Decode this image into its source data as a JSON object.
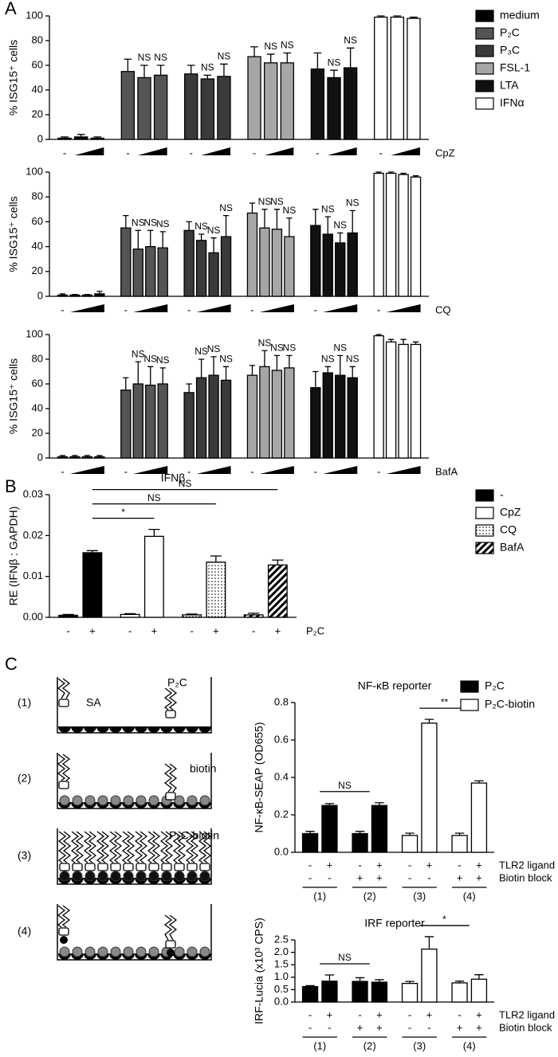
{
  "panel_labels": [
    "A",
    "B",
    "C"
  ],
  "diagram": {
    "rows": [
      "(1)",
      "(2)",
      "(3)",
      "(4)"
    ],
    "labels": [
      "P₂C",
      "SA",
      "biotin",
      "P₂C-biotin"
    ]
  },
  "chart_data": [
    {
      "type": "bar",
      "ylabel": "% ISG15⁺ cells",
      "ylim": [
        0,
        100
      ],
      "yticks": [
        0,
        20,
        40,
        60,
        80,
        100
      ],
      "treatment": "CpZ",
      "dose_labels": [
        "-",
        null,
        null
      ],
      "legend": "right",
      "series": [
        {
          "name": "medium",
          "color": "#000000",
          "values": [
            1,
            2,
            1
          ],
          "errors": [
            1,
            2,
            1
          ],
          "annotations": [
            null,
            null,
            null
          ]
        },
        {
          "name": "P₂C",
          "color": "#555555",
          "values": [
            55,
            50,
            52
          ],
          "errors": [
            10,
            10,
            8
          ],
          "annotations": [
            null,
            "NS",
            "NS"
          ]
        },
        {
          "name": "P₃C",
          "color": "#3a3a3a",
          "values": [
            53,
            49,
            51
          ],
          "errors": [
            7,
            3,
            10
          ],
          "annotations": [
            null,
            "NS",
            "NS"
          ]
        },
        {
          "name": "FSL-1",
          "color": "#a6a6a6",
          "values": [
            67,
            62,
            62
          ],
          "errors": [
            8,
            7,
            8
          ],
          "annotations": [
            null,
            "NS",
            "NS"
          ]
        },
        {
          "name": "LTA",
          "color": "#111111",
          "values": [
            57,
            50,
            58
          ],
          "errors": [
            13,
            6,
            16
          ],
          "annotations": [
            null,
            "NS",
            "NS"
          ]
        },
        {
          "name": "IFNα",
          "color": "#ffffff",
          "values": [
            99,
            99,
            98
          ],
          "errors": [
            1,
            1,
            1
          ],
          "annotations": [
            null,
            null,
            null
          ]
        }
      ]
    },
    {
      "type": "bar",
      "ylabel": "% ISG15⁺ cells",
      "ylim": [
        0,
        100
      ],
      "yticks": [
        0,
        20,
        40,
        60,
        80,
        100
      ],
      "treatment": "CQ",
      "dose_labels": [
        "-",
        null,
        null,
        null
      ],
      "series": [
        {
          "color": "#000000",
          "values": [
            1,
            1,
            1,
            2
          ],
          "errors": [
            1,
            0.5,
            0.5,
            2
          ],
          "annotations": [
            null,
            null,
            null,
            null
          ]
        },
        {
          "color": "#555555",
          "values": [
            55,
            38,
            40,
            39
          ],
          "errors": [
            10,
            15,
            13,
            13
          ],
          "annotations": [
            null,
            "NS",
            "NS",
            "NS"
          ]
        },
        {
          "color": "#3a3a3a",
          "values": [
            53,
            45,
            35,
            48
          ],
          "errors": [
            7,
            5,
            12,
            17
          ],
          "annotations": [
            null,
            "NS",
            "NS",
            "NS"
          ]
        },
        {
          "color": "#a6a6a6",
          "values": [
            67,
            55,
            54,
            48
          ],
          "errors": [
            8,
            15,
            16,
            15
          ],
          "annotations": [
            null,
            "NS",
            "NS",
            "NS"
          ]
        },
        {
          "color": "#111111",
          "values": [
            57,
            50,
            43,
            51
          ],
          "errors": [
            13,
            14,
            8,
            18
          ],
          "annotations": [
            null,
            "NS",
            "NS",
            "NS"
          ]
        },
        {
          "color": "#ffffff",
          "values": [
            99,
            99,
            98,
            96
          ],
          "errors": [
            1,
            1,
            1,
            1
          ],
          "annotations": [
            null,
            null,
            null,
            null
          ]
        }
      ]
    },
    {
      "type": "bar",
      "ylabel": "% ISG15⁺ cells",
      "ylim": [
        0,
        100
      ],
      "yticks": [
        0,
        20,
        40,
        60,
        80,
        100
      ],
      "treatment": "BafA",
      "dose_labels": [
        "-",
        null,
        null,
        null
      ],
      "series": [
        {
          "color": "#000000",
          "values": [
            1,
            1,
            1,
            1
          ],
          "errors": [
            1,
            1,
            1,
            1
          ],
          "annotations": [
            null,
            null,
            null,
            null
          ]
        },
        {
          "color": "#555555",
          "values": [
            55,
            60,
            59,
            60
          ],
          "errors": [
            10,
            18,
            15,
            13
          ],
          "annotations": [
            null,
            "NS",
            "NS",
            "NS"
          ]
        },
        {
          "color": "#3a3a3a",
          "values": [
            53,
            65,
            67,
            63
          ],
          "errors": [
            7,
            15,
            15,
            11
          ],
          "annotations": [
            null,
            "NS",
            "NS",
            "NS"
          ]
        },
        {
          "color": "#a6a6a6",
          "values": [
            67,
            74,
            71,
            73
          ],
          "errors": [
            8,
            13,
            12,
            10
          ],
          "annotations": [
            null,
            "NS",
            "NS",
            "NS"
          ]
        },
        {
          "color": "#111111",
          "values": [
            57,
            69,
            67,
            65
          ],
          "errors": [
            13,
            5,
            16,
            9
          ],
          "annotations": [
            null,
            "NS",
            "NS",
            "NS"
          ]
        },
        {
          "color": "#ffffff",
          "values": [
            99,
            94,
            92,
            92
          ],
          "errors": [
            1,
            2,
            4,
            2
          ],
          "annotations": [
            null,
            null,
            null,
            null
          ]
        }
      ]
    },
    {
      "type": "bar",
      "title": "IFNβ",
      "ylabel": "RE (IFNβ : GAPDH)",
      "ylim": [
        0,
        0.03
      ],
      "yticks": [
        {
          "value": 0,
          "label": "0.00"
        },
        {
          "value": 0.01,
          "label": "0.01"
        },
        {
          "value": 0.02,
          "label": "0.02"
        },
        {
          "value": 0.03,
          "label": "0.03"
        }
      ],
      "categories": [
        "-",
        "+"
      ],
      "xlabel": "P₂C",
      "legend": "right",
      "series": [
        {
          "name": "-",
          "color": "#000000",
          "pattern": "solid",
          "values": [
            0.0005,
            0.0158
          ],
          "errors": [
            0.0002,
            0.0005
          ]
        },
        {
          "name": "CpZ",
          "color": "#ffffff",
          "pattern": "solid",
          "values": [
            0.0007,
            0.0198
          ],
          "errors": [
            0.0002,
            0.0017
          ]
        },
        {
          "name": "CQ",
          "color": "#ffffff",
          "pattern": "dots",
          "values": [
            0.0006,
            0.0135
          ],
          "errors": [
            0.0002,
            0.0015
          ]
        },
        {
          "name": "BafA",
          "color": "#ffffff",
          "pattern": "hatch",
          "values": [
            0.0006,
            0.0128
          ],
          "errors": [
            0.0004,
            0.0012
          ]
        }
      ],
      "comparisons": [
        {
          "series": [
            "-",
            "CpZ"
          ],
          "category": "+",
          "label": "*"
        },
        {
          "series": [
            "-",
            "CQ"
          ],
          "category": "+",
          "label": "NS"
        },
        {
          "series": [
            "-",
            "BafA"
          ],
          "category": "+",
          "label": "NS"
        }
      ]
    },
    {
      "type": "bar",
      "title": "NF-κB reporter",
      "ylabel": "NF-κB-SEAP (OD655)",
      "ylim": [
        0,
        0.8
      ],
      "yticks": [
        {
          "value": 0,
          "label": "0.0"
        },
        {
          "value": 0.2,
          "label": "0.2"
        },
        {
          "value": 0.4,
          "label": "0.4"
        },
        {
          "value": 0.6,
          "label": "0.6"
        },
        {
          "value": 0.8,
          "label": "0.8"
        }
      ],
      "legend": "right",
      "groups": [
        "(1)",
        "(2)",
        "(3)",
        "(4)"
      ],
      "conditions": [
        {
          "label": "TLR2 ligand",
          "values": [
            "-",
            "+",
            "-",
            "+",
            "-",
            "+",
            "-",
            "+"
          ]
        },
        {
          "label": "Biotin block",
          "values": [
            "-",
            "-",
            "+",
            "+",
            "-",
            "-",
            "+",
            "+"
          ]
        }
      ],
      "series": [
        {
          "name": "P₂C",
          "color": "#000000",
          "values": [
            0.1,
            0.25,
            0.1,
            0.25
          ],
          "errors": [
            0.012,
            0.01,
            0.012,
            0.015
          ]
        },
        {
          "name": "P₂C-biotin",
          "color": "#ffffff",
          "values": [
            0.09,
            0.69,
            0.09,
            0.37
          ],
          "errors": [
            0.012,
            0.02,
            0.012,
            0.012
          ]
        }
      ],
      "comparisons": [
        {
          "groups": [
            "(1)",
            "(2)"
          ],
          "label": "NS"
        },
        {
          "groups": [
            "(3)",
            "(4)"
          ],
          "label": "**"
        }
      ]
    },
    {
      "type": "bar",
      "title": "IRF reporter",
      "ylabel": "IRF-Lucia (x10³ CPS)",
      "ylim": [
        0,
        2.5
      ],
      "yticks": [
        {
          "value": 0,
          "label": "0.0"
        },
        {
          "value": 0.5,
          "label": "0.5"
        },
        {
          "value": 1,
          "label": "1.0"
        },
        {
          "value": 1.5,
          "label": "1.5"
        },
        {
          "value": 2,
          "label": "2.0"
        },
        {
          "value": 2.5,
          "label": "2.5"
        }
      ],
      "groups": [
        "(1)",
        "(2)",
        "(3)",
        "(4)"
      ],
      "conditions": [
        {
          "label": "TLR2 ligand",
          "values": [
            "-",
            "+",
            "-",
            "+",
            "-",
            "+",
            "-",
            "+"
          ]
        },
        {
          "label": "Biotin block",
          "values": [
            "-",
            "-",
            "+",
            "+",
            "-",
            "-",
            "+",
            "+"
          ]
        }
      ],
      "series": [
        {
          "color": "#000000",
          "values": [
            0.62,
            0.84,
            0.83,
            0.8
          ],
          "errors": [
            0.04,
            0.25,
            0.15,
            0.1
          ]
        },
        {
          "color": "#ffffff",
          "values": [
            0.75,
            2.13,
            0.77,
            0.92
          ],
          "errors": [
            0.08,
            0.5,
            0.07,
            0.18
          ]
        }
      ],
      "comparisons": [
        {
          "groups": [
            "(1)",
            "(2)"
          ],
          "label": "NS"
        },
        {
          "groups": [
            "(3)",
            "(4)"
          ],
          "label": "*"
        }
      ]
    }
  ]
}
